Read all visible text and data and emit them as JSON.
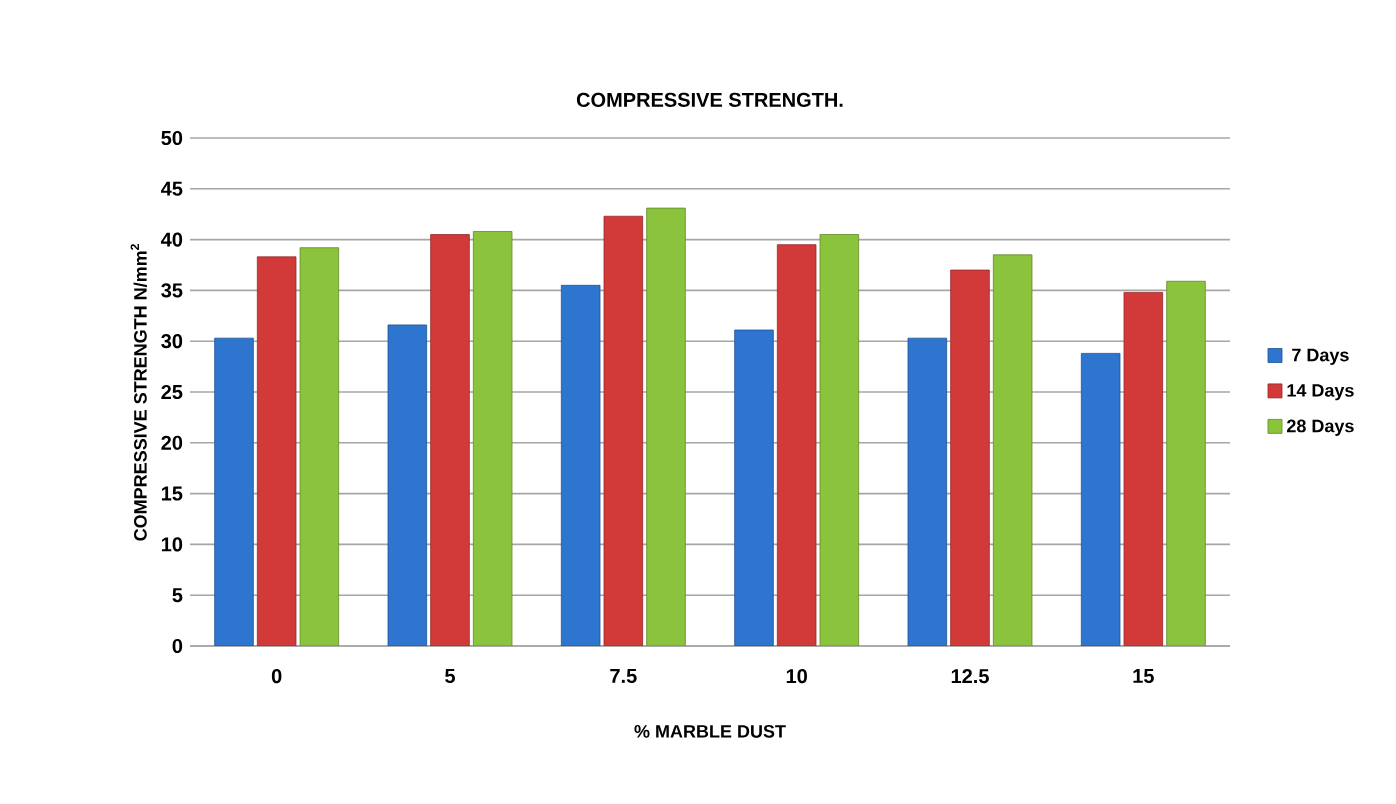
{
  "chart_data": {
    "type": "bar",
    "title": "COMPRESSIVE STRENGTH.",
    "xlabel": "% MARBLE DUST",
    "ylabel": "COMPRESSIVE STRENGTH  N/mm$^{2}$",
    "categories": [
      "0",
      "5",
      "7.5",
      "10",
      "12.5",
      "15"
    ],
    "series": [
      {
        "name": "7 Days",
        "color": "#2e75d0",
        "values": [
          30.3,
          31.6,
          35.5,
          31.1,
          30.3,
          28.8
        ]
      },
      {
        "name": "14 Days",
        "color": "#d23a3a",
        "values": [
          38.3,
          40.5,
          42.3,
          39.5,
          37.0,
          34.8
        ]
      },
      {
        "name": "28 Days",
        "color": "#8cc33c",
        "values": [
          39.2,
          40.8,
          43.1,
          40.5,
          38.5,
          35.9
        ]
      }
    ],
    "ylim": [
      0,
      50
    ],
    "yticks": [
      0,
      5,
      10,
      15,
      20,
      25,
      30,
      35,
      40,
      45,
      50
    ],
    "grid": "y",
    "legend": "right"
  }
}
